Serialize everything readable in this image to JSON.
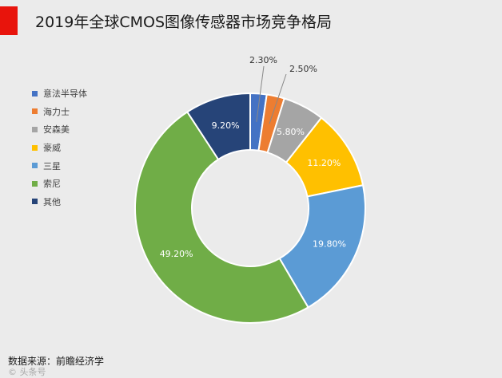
{
  "colors": {
    "background": "#ebebeb",
    "accent": "#e8140c"
  },
  "footer": {
    "source": "数据来源：前瞻经济学",
    "watermark": "© 头条号"
  },
  "chart_data": {
    "type": "pie",
    "donut": true,
    "title": "2019年全球CMOS图像传感器市场竞争格局",
    "legend_position": "left",
    "slices": [
      {
        "name": "意法半导体",
        "value": 2.3,
        "label": "2.30%",
        "color": "#4472c4"
      },
      {
        "name": "海力士",
        "value": 2.5,
        "label": "2.50%",
        "color": "#ed7d31"
      },
      {
        "name": "安森美",
        "value": 5.8,
        "label": "5.80%",
        "color": "#a5a5a5"
      },
      {
        "name": "豪威",
        "value": 11.2,
        "label": "11.20%",
        "color": "#ffc000"
      },
      {
        "name": "三星",
        "value": 19.8,
        "label": "19.80%",
        "color": "#5b9bd5"
      },
      {
        "name": "索尼",
        "value": 49.2,
        "label": "49.20%",
        "color": "#70ad47"
      },
      {
        "name": "其他",
        "value": 9.2,
        "label": "9.20%",
        "color": "#264478"
      }
    ]
  }
}
